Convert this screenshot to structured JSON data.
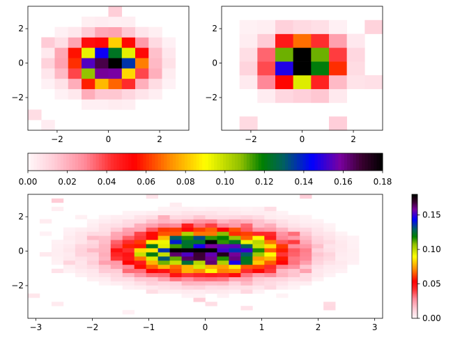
{
  "colormap": {
    "name": "gist_ncar-like",
    "stops": [
      [
        0.0,
        "#fff8fa"
      ],
      [
        0.07,
        "#ffd0da"
      ],
      [
        0.16,
        "#ff8a9a"
      ],
      [
        0.24,
        "#ff2a2a"
      ],
      [
        0.3,
        "#ff0000"
      ],
      [
        0.4,
        "#ff8c00"
      ],
      [
        0.5,
        "#ffff00"
      ],
      [
        0.6,
        "#8fbf00"
      ],
      [
        0.66,
        "#008000"
      ],
      [
        0.72,
        "#006060"
      ],
      [
        0.8,
        "#0000ff"
      ],
      [
        0.88,
        "#7a00a0"
      ],
      [
        0.94,
        "#3a0030"
      ],
      [
        1.0,
        "#000000"
      ]
    ]
  },
  "chart_data": [
    {
      "type": "heatmap",
      "panel": "top-left",
      "title": "",
      "xlabel": "",
      "ylabel": "",
      "xlim": [
        -3.14,
        3.14
      ],
      "ylim": [
        -3.9,
        3.3
      ],
      "xticks": [
        "−2",
        "0",
        "2"
      ],
      "yticks": [
        "2",
        "0",
        "−2"
      ],
      "bins": [
        12,
        12
      ],
      "clim": [
        0,
        0.18
      ],
      "grid": false
    },
    {
      "type": "heatmap",
      "panel": "top-right",
      "title": "",
      "xlabel": "",
      "ylabel": "",
      "xlim": [
        -3.14,
        3.14
      ],
      "ylim": [
        -3.9,
        3.3
      ],
      "xticks": [
        "−2",
        "0",
        "2"
      ],
      "yticks": [
        "2",
        "0",
        "−2"
      ],
      "bins": [
        9,
        9
      ],
      "clim": [
        0,
        0.18
      ],
      "grid": false
    },
    {
      "type": "heatmap",
      "panel": "bottom",
      "title": "",
      "xlabel": "",
      "ylabel": "",
      "xlim": [
        -3.14,
        3.14
      ],
      "ylim": [
        -3.9,
        3.3
      ],
      "xticks": [
        "−3",
        "−2",
        "−1",
        "0",
        "1",
        "2",
        "3"
      ],
      "yticks": [
        "2",
        "0",
        "−2"
      ],
      "bins": [
        30,
        30
      ],
      "clim": [
        0,
        0.18
      ],
      "grid": false
    }
  ],
  "colorbars": {
    "horizontal": {
      "range": [
        0,
        0.18
      ],
      "ticks": [
        "0.00",
        "0.02",
        "0.04",
        "0.06",
        "0.08",
        "0.10",
        "0.12",
        "0.14",
        "0.16",
        "0.18"
      ]
    },
    "vertical": {
      "range": [
        0,
        0.18
      ],
      "ticks": [
        "0.00",
        "0.05",
        "0.10",
        "0.15"
      ]
    }
  }
}
